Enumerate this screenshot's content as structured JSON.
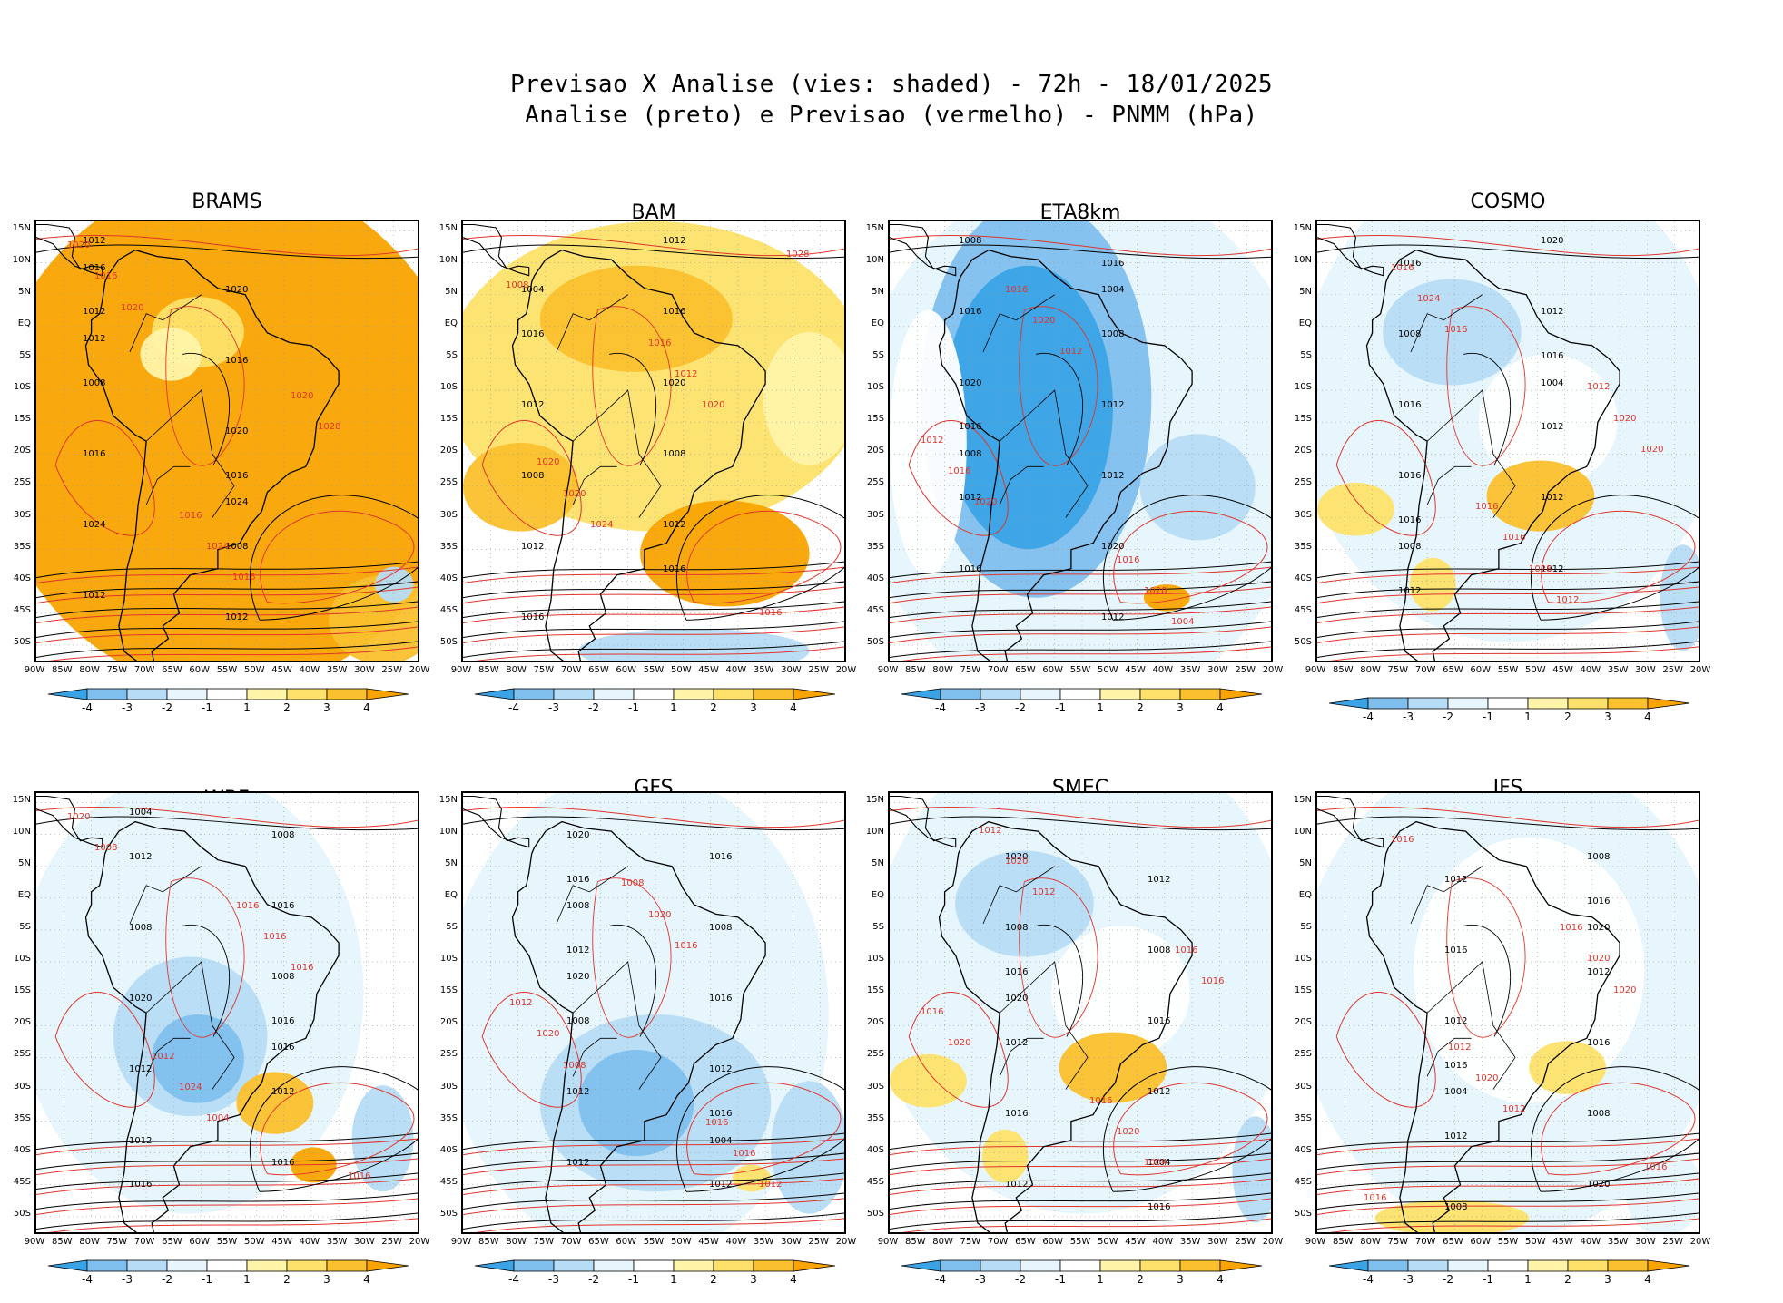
{
  "title": {
    "line1": "Previsao X Analise (vies: shaded) - 72h - 18/01/2025",
    "line2": "Analise (preto) e Previsao (vermelho) - PNMM (hPa)"
  },
  "lat_labels": [
    "15N",
    "10N",
    "5N",
    "EQ",
    "5S",
    "10S",
    "15S",
    "20S",
    "25S",
    "30S",
    "35S",
    "40S",
    "45S",
    "50S"
  ],
  "lon_labels": [
    "90W",
    "85W",
    "80W",
    "75W",
    "70W",
    "65W",
    "60W",
    "55W",
    "50W",
    "45W",
    "40W",
    "35W",
    "30W",
    "25W",
    "20W"
  ],
  "colorbar": {
    "ticks": [
      "-4",
      "-3",
      "-2",
      "-1",
      "1",
      "2",
      "3",
      "4"
    ],
    "colors": [
      "#3aa3e6",
      "#7fbfee",
      "#b6dcf6",
      "#e6f6fc",
      "#ffffff",
      "#fff4a8",
      "#fde16a",
      "#fbc02d",
      "#f9a400"
    ]
  },
  "colors": {
    "analysis_contour": "#000000",
    "forecast_contour": "#e0352b",
    "land_outline": "#000000"
  },
  "panels": [
    {
      "model": "BRAMS",
      "bias": "warm_strong",
      "contour_labels_black": [
        "1012",
        "1016",
        "1012",
        "1008",
        "1008",
        "1012",
        "1016",
        "1020",
        "1024",
        "1016",
        "1012",
        "1020",
        "1016",
        "1024",
        "1012"
      ],
      "contour_labels_red": [
        "1020",
        "1016",
        "1020",
        "1016",
        "1024",
        "1028",
        "1020",
        "1016"
      ]
    },
    {
      "model": "BAM",
      "bias": "warm_moderate",
      "contour_labels_black": [
        "1016",
        "1016",
        "1012",
        "1012",
        "1008",
        "1016",
        "1012",
        "1020",
        "1016",
        "1008",
        "1004",
        "1012"
      ],
      "contour_labels_red": [
        "1020",
        "1016",
        "1016",
        "1020",
        "1012",
        "1028",
        "1024",
        "1020",
        "1008"
      ]
    },
    {
      "model": "ETA8km",
      "bias": "cold",
      "contour_labels_black": [
        "1016",
        "1016",
        "1012",
        "1008",
        "1016",
        "1012",
        "1008",
        "1012",
        "1016",
        "1020",
        "1020",
        "1012",
        "1008",
        "1004"
      ],
      "contour_labels_red": [
        "1016",
        "1016",
        "1012",
        "1020",
        "1020",
        "1016",
        "1012",
        "1004",
        "1020"
      ]
    },
    {
      "model": "COSMO",
      "bias": "mixed",
      "contour_labels_black": [
        "1016",
        "1016",
        "1012",
        "1012",
        "1016",
        "1012",
        "1008",
        "1012",
        "1016",
        "1020",
        "1016",
        "1012",
        "1008",
        "1004"
      ],
      "contour_labels_red": [
        "1016",
        "1012",
        "1016",
        "1016",
        "1020",
        "1024",
        "1028",
        "1020",
        "1016",
        "1012"
      ]
    },
    {
      "model": "WRF",
      "bias": "mixed_cold",
      "contour_labels_black": [
        "1016",
        "1016",
        "1012",
        "1012",
        "1008",
        "1016",
        "1020",
        "1008",
        "1012",
        "1016",
        "1012",
        "1008",
        "1004",
        "1016"
      ],
      "contour_labels_red": [
        "1016",
        "1016",
        "1012",
        "1016",
        "1020",
        "1024",
        "1016",
        "1008",
        "1004"
      ]
    },
    {
      "model": "GFS",
      "bias": "cold_south",
      "contour_labels_black": [
        "1016",
        "1016",
        "1012",
        "1012",
        "1008",
        "1016",
        "1012",
        "1008",
        "1012",
        "1016",
        "1020",
        "1012",
        "1008",
        "1004",
        "1020"
      ],
      "contour_labels_red": [
        "1016",
        "1012",
        "1008",
        "1016",
        "1020",
        "1020",
        "1012",
        "1008",
        "1016"
      ]
    },
    {
      "model": "SMEC",
      "bias": "mixed",
      "contour_labels_black": [
        "1016",
        "1016",
        "1012",
        "1012",
        "1016",
        "1008",
        "1012",
        "1016",
        "1020",
        "1012",
        "1008",
        "1004",
        "1020"
      ],
      "contour_labels_red": [
        "1016",
        "1012",
        "1016",
        "1016",
        "1020",
        "1020",
        "1016",
        "1012",
        "1004",
        "1020"
      ]
    },
    {
      "model": "IFS",
      "bias": "neutral",
      "contour_labels_black": [
        "1016",
        "1016",
        "1012",
        "1012",
        "1008",
        "1016",
        "1012",
        "1008",
        "1016",
        "1020",
        "1012",
        "1008",
        "1004",
        "1020"
      ],
      "contour_labels_red": [
        "1016",
        "1012",
        "1016",
        "1016",
        "1020",
        "1020",
        "1016",
        "1012",
        "1020"
      ]
    }
  ]
}
